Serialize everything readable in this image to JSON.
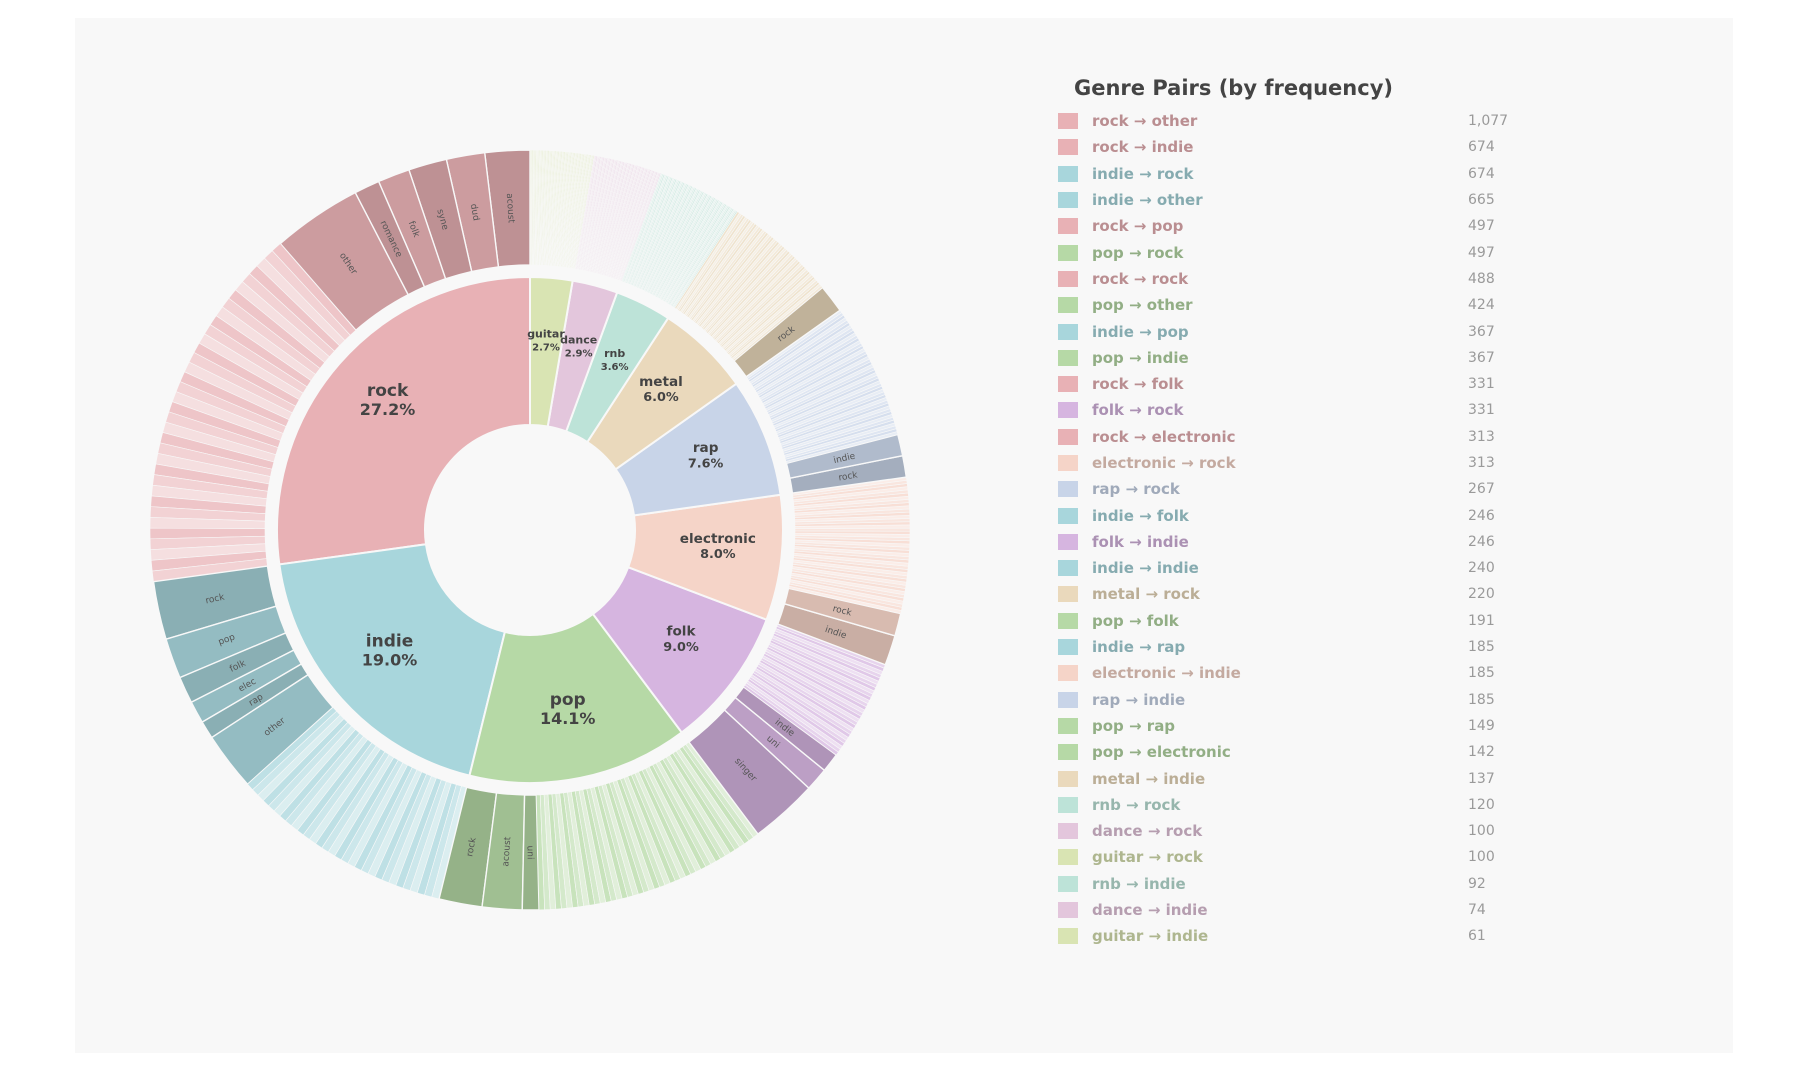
{
  "colors": {
    "rock": "#e8b1b5",
    "indie": "#a8d6dc",
    "pop": "#b6d9a6",
    "folk": "#d6b5e0",
    "electronic": "#f5d4c8",
    "rap": "#c8d4e8",
    "metal": "#ead9bc",
    "rnb": "#bde3d8",
    "dance": "#e3c6dc",
    "guitar": "#d9e4b3"
  },
  "chart_data": {
    "type": "sunburst",
    "inner_ring": [
      {
        "name": "rock",
        "pct_label": "27.2%",
        "value": 27.2
      },
      {
        "name": "indie",
        "pct_label": "19.0%",
        "value": 19.0
      },
      {
        "name": "pop",
        "pct_label": "14.1%",
        "value": 14.1
      },
      {
        "name": "folk",
        "pct_label": "9.0%",
        "value": 9.0
      },
      {
        "name": "electronic",
        "pct_label": "8.0%",
        "value": 8.0
      },
      {
        "name": "rap",
        "pct_label": "7.6%",
        "value": 7.6
      },
      {
        "name": "metal",
        "pct_label": "6.0%",
        "value": 6.0
      },
      {
        "name": "rnb",
        "pct_label": "3.6%",
        "value": 3.6
      },
      {
        "name": "dance",
        "pct_label": "2.9%",
        "value": 2.9
      },
      {
        "name": "guitar",
        "pct_label": "2.7%",
        "value": 2.7
      }
    ],
    "outer_ring": [
      {
        "parent": "rock",
        "labels": [
          "acoust",
          "dud",
          "syne",
          "folk",
          "romance",
          "other"
        ],
        "value_shares": [
          0.07,
          0.06,
          0.06,
          0.05,
          0.04,
          0.14
        ]
      },
      {
        "parent": "indie",
        "labels": [
          "rock",
          "pop",
          "folk",
          "elec",
          "rap",
          "other"
        ],
        "value_shares": [
          0.13,
          0.09,
          0.06,
          0.05,
          0.04,
          0.13
        ]
      },
      {
        "parent": "pop",
        "labels": [
          "rock",
          "acoust",
          "uni"
        ],
        "value_shares": [
          0.13,
          0.12,
          0.05
        ]
      },
      {
        "parent": "folk",
        "labels": [
          "singer",
          "uni",
          "indie"
        ],
        "value_shares": [
          0.32,
          0.11,
          0.09
        ]
      },
      {
        "parent": "electronic",
        "labels": [
          "indie",
          "rock"
        ],
        "value_shares": [
          0.16,
          0.12
        ]
      },
      {
        "parent": "rap",
        "labels": [
          "rock",
          "indie"
        ],
        "value_shares": [
          0.12,
          0.12
        ]
      },
      {
        "parent": "metal",
        "labels": [
          "rock"
        ],
        "value_shares": [
          0.2
        ]
      },
      {
        "parent": "rnb",
        "labels": [],
        "value_shares": []
      },
      {
        "parent": "dance",
        "labels": [],
        "value_shares": []
      },
      {
        "parent": "guitar",
        "labels": [],
        "value_shares": []
      }
    ],
    "legend": {
      "title": "Genre Pairs (by frequency)",
      "entries": [
        {
          "label": "rock → other",
          "value": "1,077",
          "genre": "rock"
        },
        {
          "label": "rock → indie",
          "value": "674",
          "genre": "rock"
        },
        {
          "label": "indie → rock",
          "value": "674",
          "genre": "indie"
        },
        {
          "label": "indie → other",
          "value": "665",
          "genre": "indie"
        },
        {
          "label": "rock → pop",
          "value": "497",
          "genre": "rock"
        },
        {
          "label": "pop → rock",
          "value": "497",
          "genre": "pop"
        },
        {
          "label": "rock → rock",
          "value": "488",
          "genre": "rock"
        },
        {
          "label": "pop → other",
          "value": "424",
          "genre": "pop"
        },
        {
          "label": "indie → pop",
          "value": "367",
          "genre": "indie"
        },
        {
          "label": "pop → indie",
          "value": "367",
          "genre": "pop"
        },
        {
          "label": "rock → folk",
          "value": "331",
          "genre": "rock"
        },
        {
          "label": "folk → rock",
          "value": "331",
          "genre": "folk"
        },
        {
          "label": "rock → electronic",
          "value": "313",
          "genre": "rock"
        },
        {
          "label": "electronic → rock",
          "value": "313",
          "genre": "electronic"
        },
        {
          "label": "rap → rock",
          "value": "267",
          "genre": "rap"
        },
        {
          "label": "indie → folk",
          "value": "246",
          "genre": "indie"
        },
        {
          "label": "folk → indie",
          "value": "246",
          "genre": "folk"
        },
        {
          "label": "indie → indie",
          "value": "240",
          "genre": "indie"
        },
        {
          "label": "metal → rock",
          "value": "220",
          "genre": "metal"
        },
        {
          "label": "pop → folk",
          "value": "191",
          "genre": "pop"
        },
        {
          "label": "indie → rap",
          "value": "185",
          "genre": "indie"
        },
        {
          "label": "electronic → indie",
          "value": "185",
          "genre": "electronic"
        },
        {
          "label": "rap → indie",
          "value": "185",
          "genre": "rap"
        },
        {
          "label": "pop → rap",
          "value": "149",
          "genre": "pop"
        },
        {
          "label": "pop → electronic",
          "value": "142",
          "genre": "pop"
        },
        {
          "label": "metal → indie",
          "value": "137",
          "genre": "metal"
        },
        {
          "label": "rnb → rock",
          "value": "120",
          "genre": "rnb"
        },
        {
          "label": "dance → rock",
          "value": "100",
          "genre": "dance"
        },
        {
          "label": "guitar → rock",
          "value": "100",
          "genre": "guitar"
        },
        {
          "label": "rnb → indie",
          "value": "92",
          "genre": "rnb"
        },
        {
          "label": "dance → indie",
          "value": "74",
          "genre": "dance"
        },
        {
          "label": "guitar → indie",
          "value": "61",
          "genre": "guitar"
        }
      ]
    }
  }
}
